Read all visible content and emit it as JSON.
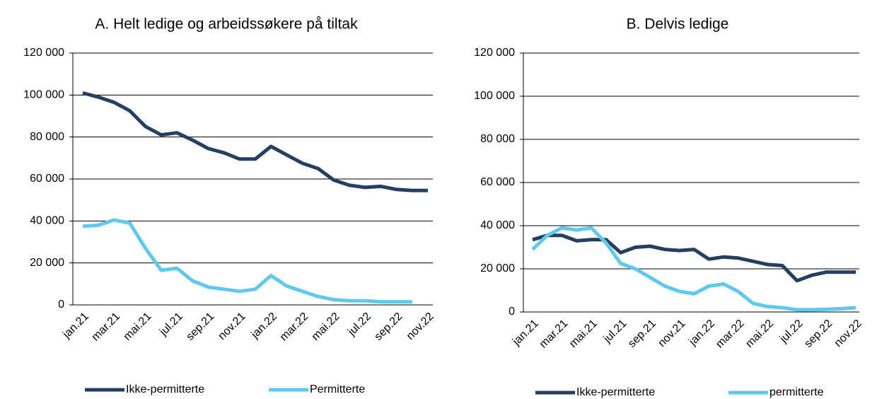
{
  "chart_data": [
    {
      "type": "line",
      "title": "A. Helt ledige og arbeidssøkere på tiltak",
      "categories": [
        "jan.21",
        null,
        "mar.21",
        null,
        "mai.21",
        null,
        "jul.21",
        null,
        "sep.21",
        null,
        "nov.21",
        null,
        "jan.22",
        null,
        "mar.22",
        null,
        "mai.22",
        null,
        "jul.22",
        null,
        "sep.22",
        null,
        "nov.22"
      ],
      "series": [
        {
          "name": "Ikke-permitterte",
          "color": "#243f60",
          "values": [
            101000,
            99000,
            96500,
            92500,
            85000,
            81000,
            82000,
            78500,
            74500,
            72500,
            69500,
            69500,
            75500,
            71500,
            67500,
            65000,
            59500,
            57000,
            56000,
            56500,
            55000,
            54500,
            54500
          ]
        },
        {
          "name": "Permitterte",
          "color": "#5fc8ee",
          "values": [
            37500,
            38000,
            40500,
            39000,
            27000,
            16500,
            17500,
            11500,
            8500,
            7500,
            6500,
            7500,
            14000,
            9000,
            6500,
            4000,
            2500,
            2000,
            2000,
            1500,
            1500,
            1500,
            null
          ]
        }
      ],
      "ylim": [
        0,
        120000
      ],
      "yticks": [
        0,
        {
          "value": 20000,
          "label": "20 000"
        },
        {
          "value": 40000,
          "label": "40 000"
        },
        {
          "value": 60000,
          "label": "60 000"
        },
        {
          "value": 80000,
          "label": "80 000"
        },
        {
          "value": 100000,
          "label": "100 000"
        },
        {
          "value": 120000,
          "label": "120 000"
        }
      ],
      "grid": true,
      "legend": "bottom"
    },
    {
      "type": "line",
      "title": "B. Delvis ledige",
      "categories": [
        "jan.21",
        null,
        "mar.21",
        null,
        "mai.21",
        null,
        "jul.21",
        null,
        "sep.21",
        null,
        "nov.21",
        null,
        "jan.22",
        null,
        "mar.22",
        null,
        "mai.22",
        null,
        "jul.22",
        null,
        "sep.22",
        null,
        "nov.22"
      ],
      "series": [
        {
          "name": "Ikke-permitterte",
          "color": "#243f60",
          "values": [
            33500,
            35500,
            35500,
            33000,
            33500,
            33500,
            27500,
            30000,
            30500,
            29000,
            28500,
            29000,
            24500,
            25500,
            25000,
            23500,
            22000,
            21500,
            14500,
            17000,
            18500,
            18500,
            18500
          ]
        },
        {
          "name": "permitterte",
          "color": "#5fc8ee",
          "values": [
            29000,
            35500,
            39000,
            38000,
            39000,
            32000,
            22500,
            20000,
            16000,
            12000,
            9500,
            8500,
            12000,
            13000,
            9500,
            4000,
            2500,
            2000,
            1000,
            1000,
            1200,
            1500,
            2000
          ]
        }
      ],
      "ylim": [
        0,
        120000
      ],
      "yticks": [
        0,
        {
          "value": 20000,
          "label": "20 000"
        },
        {
          "value": 40000,
          "label": "40 000"
        },
        {
          "value": 60000,
          "label": "60 000"
        },
        {
          "value": 80000,
          "label": "80 000"
        },
        {
          "value": 100000,
          "label": "100 000"
        },
        {
          "value": 120000,
          "label": "120 000"
        }
      ],
      "grid": true,
      "legend": "bottom"
    }
  ]
}
